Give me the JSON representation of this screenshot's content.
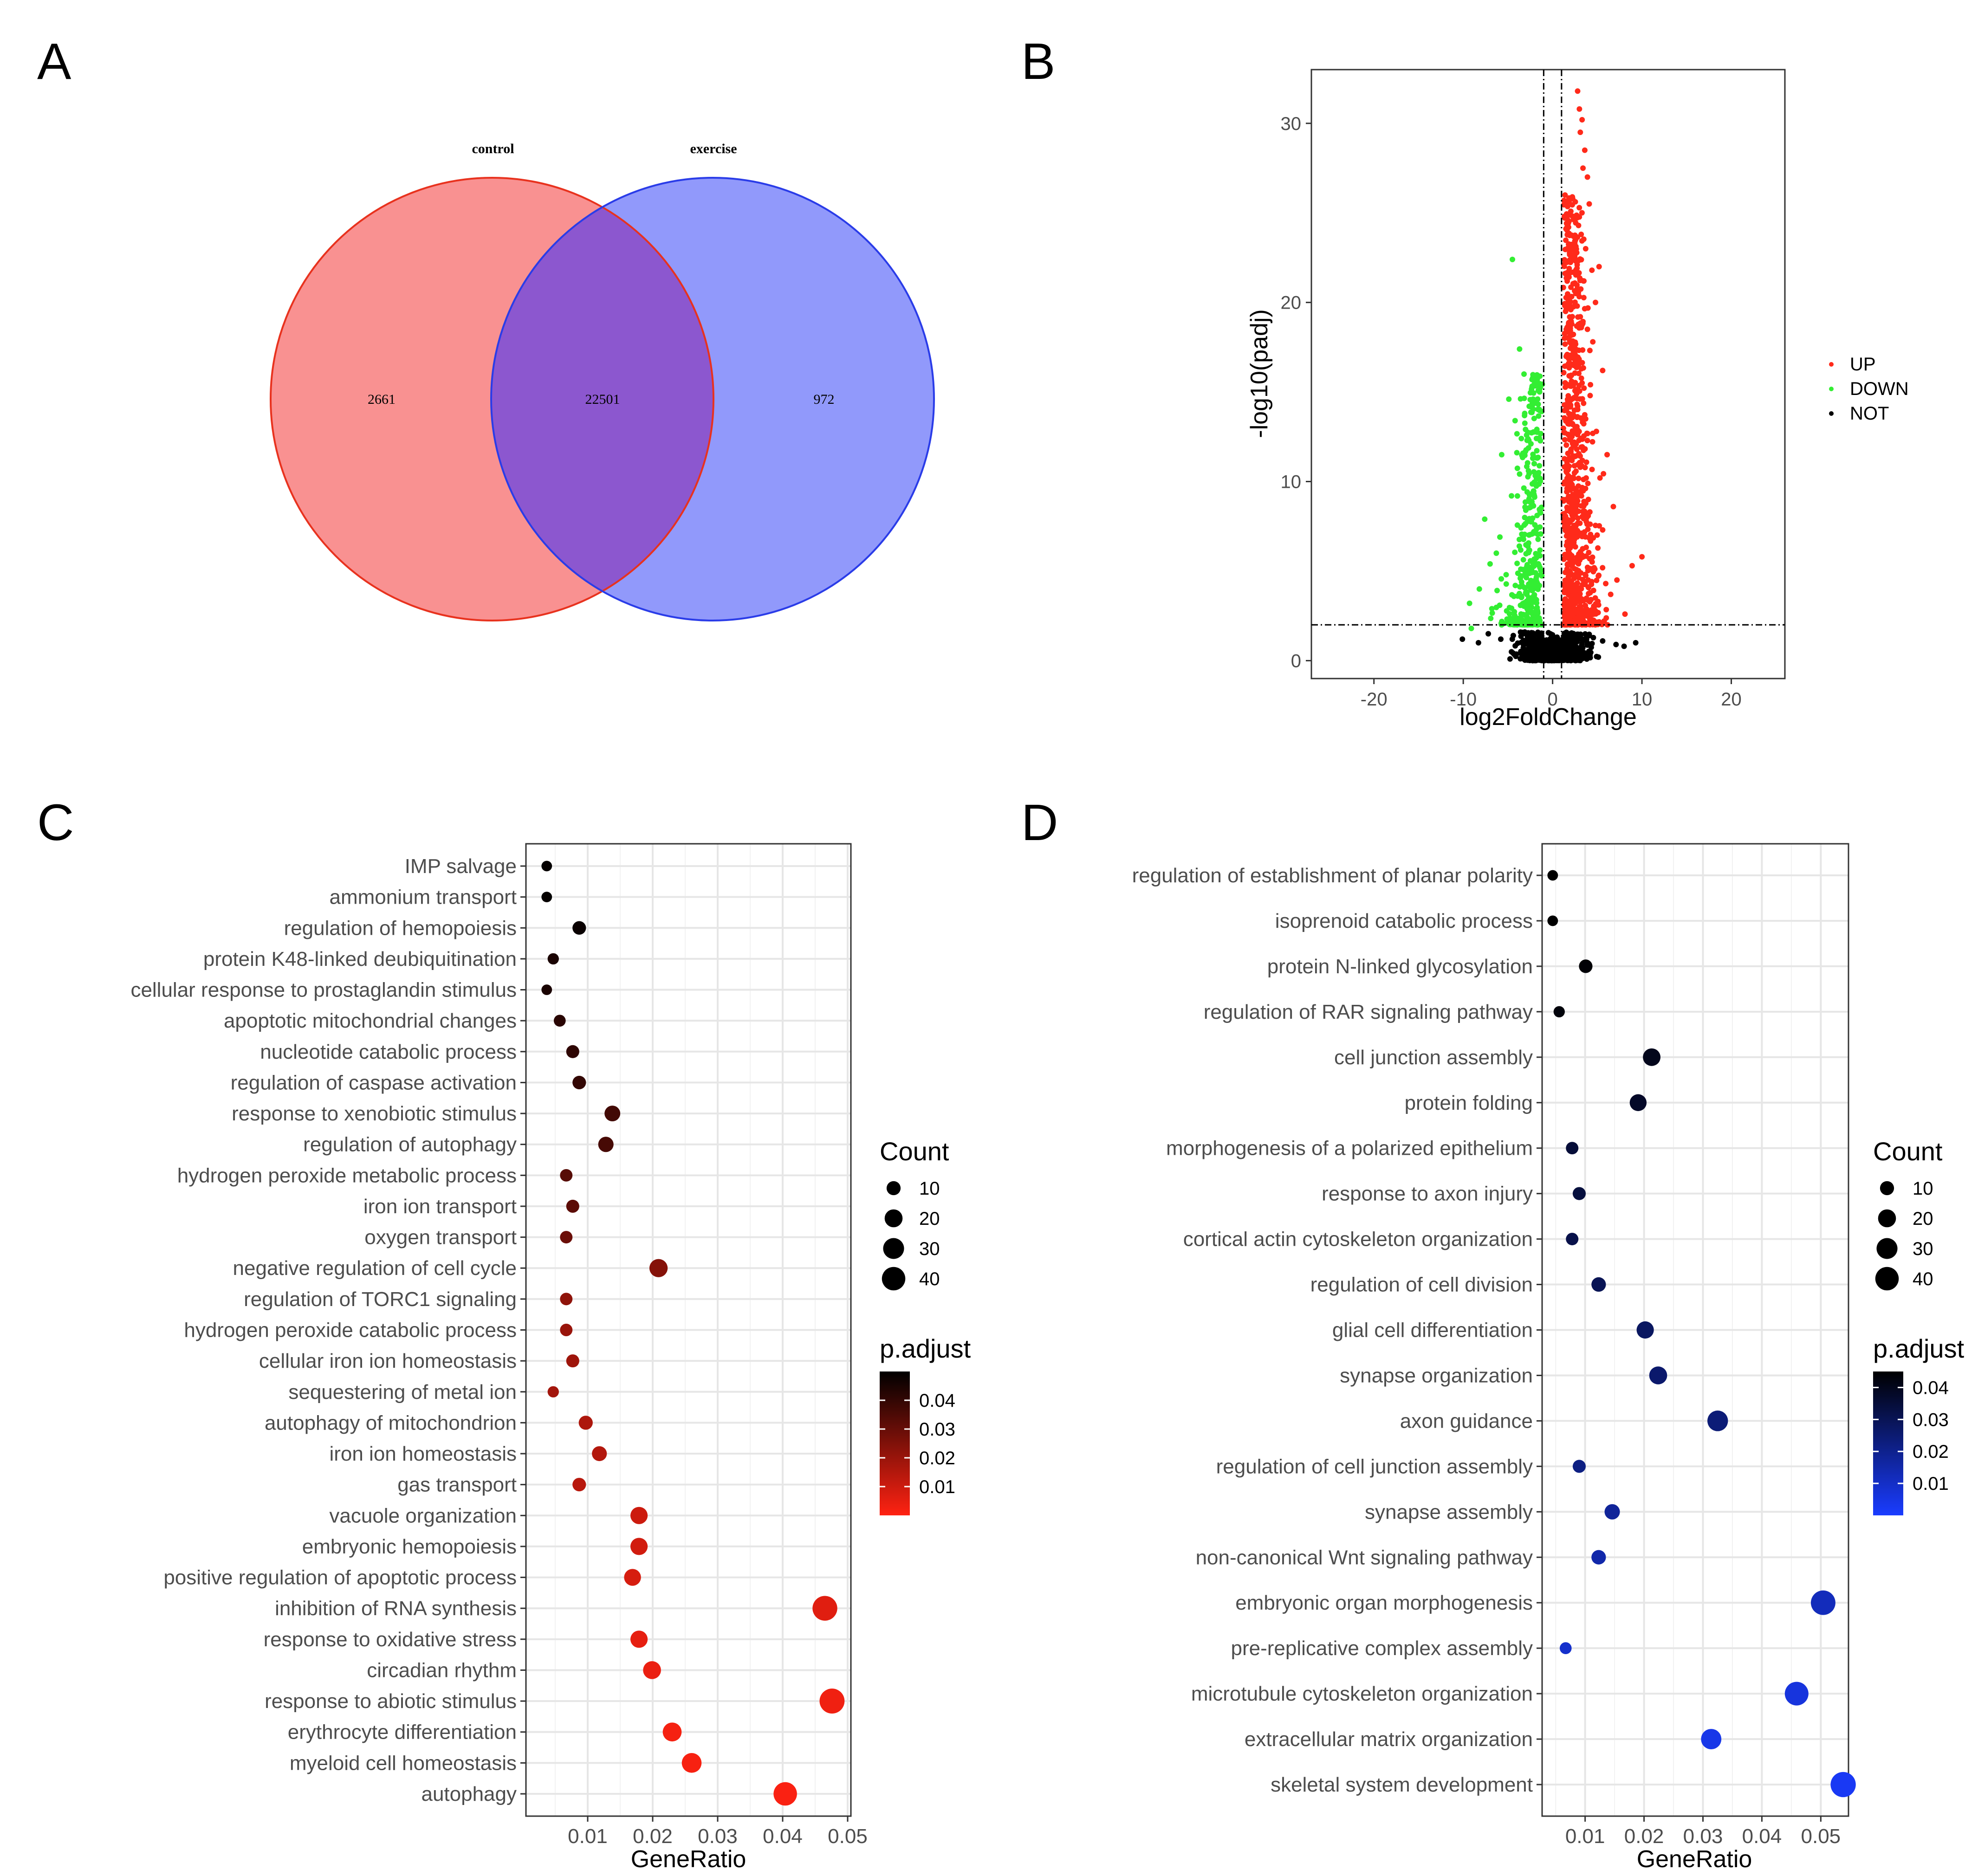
{
  "panels": {
    "a": "A",
    "b": "B",
    "c": "C",
    "d": "D"
  },
  "colors": {
    "up": "#ff2a1a",
    "down": "#33ee33",
    "not": "#000000",
    "control_fill": "#f99191",
    "control_edge": "#e8321e",
    "exercise_fill": "#9199fb",
    "exercise_edge": "#2a3ce8",
    "overlap_fill": "#8c57cf",
    "c_high": "#ff2212",
    "c_low": "#000000",
    "d_high": "#1a3cff",
    "d_low": "#000000"
  },
  "chart_data": [
    {
      "type": "venn",
      "sets": [
        {
          "name": "control",
          "only": 2661
        },
        {
          "name": "exercise",
          "only": 972
        }
      ],
      "overlap": 22501,
      "labels": {
        "control": "control",
        "exercise": "exercise",
        "control_only": "2661",
        "overlap": "22501",
        "exercise_only": "972"
      }
    },
    {
      "type": "scatter",
      "title": "",
      "xlabel": "log2FoldChange",
      "ylabel": "-log10(padj)",
      "xlim": [
        -27,
        26
      ],
      "ylim": [
        -1,
        33
      ],
      "xticks": [
        -20,
        -10,
        0,
        10,
        20
      ],
      "xtick_labels": [
        "-20",
        "-10",
        "0",
        "10",
        "20"
      ],
      "yticks": [
        0,
        10,
        20,
        30
      ],
      "ytick_labels": [
        "0",
        "10",
        "20",
        "30"
      ],
      "threshold_x": [
        -1,
        1
      ],
      "threshold_y": 2,
      "legend": [
        {
          "key": "UP",
          "label": "UP"
        },
        {
          "key": "DOWN",
          "label": "DOWN"
        },
        {
          "key": "NOT",
          "label": "NOT"
        }
      ],
      "outlier_points": {
        "UP": [
          [
            2.8,
            31.8
          ],
          [
            3.0,
            30.8
          ],
          [
            3.3,
            30.2
          ],
          [
            3.1,
            29.5
          ],
          [
            3.6,
            28.5
          ],
          [
            3.4,
            27.5
          ],
          [
            3.9,
            27.0
          ],
          [
            4.1,
            25.5
          ],
          [
            2.9,
            24.3
          ],
          [
            3.2,
            23.8
          ],
          [
            3.7,
            23.0
          ],
          [
            5.2,
            22.0
          ],
          [
            4.4,
            21.8
          ],
          [
            3.5,
            21.2
          ],
          [
            2.6,
            20.5
          ],
          [
            4.8,
            20.0
          ],
          [
            3.1,
            19.2
          ],
          [
            3.9,
            18.5
          ],
          [
            4.5,
            17.8
          ],
          [
            2.5,
            17.0
          ],
          [
            5.6,
            16.2
          ],
          [
            3.3,
            15.5
          ],
          [
            4.2,
            14.8
          ],
          [
            2.8,
            14.2
          ],
          [
            3.7,
            13.5
          ],
          [
            4.9,
            12.8
          ],
          [
            2.4,
            12.2
          ],
          [
            6.1,
            11.5
          ],
          [
            3.1,
            10.8
          ],
          [
            5.3,
            10.2
          ],
          [
            2.2,
            9.6
          ],
          [
            4.0,
            9.0
          ],
          [
            6.8,
            8.6
          ],
          [
            3.5,
            8.1
          ],
          [
            5.6,
            7.3
          ],
          [
            10.0,
            5.8
          ],
          [
            8.9,
            5.3
          ],
          [
            7.2,
            4.5
          ],
          [
            6.5,
            3.7
          ],
          [
            8.1,
            2.6
          ]
        ],
        "DOWN": [
          [
            -4.5,
            22.4
          ],
          [
            -3.7,
            17.4
          ],
          [
            -3.2,
            16.0
          ],
          [
            -4.9,
            14.6
          ],
          [
            -4.2,
            13.4
          ],
          [
            -3.5,
            12.4
          ],
          [
            -5.7,
            11.5
          ],
          [
            -2.7,
            10.6
          ],
          [
            -7.6,
            7.9
          ],
          [
            -4.6,
            9.2
          ],
          [
            -3.0,
            8.4
          ],
          [
            -5.9,
            6.9
          ],
          [
            -6.3,
            6.0
          ],
          [
            -2.1,
            7.2
          ],
          [
            -7.0,
            5.4
          ],
          [
            -5.2,
            4.8
          ],
          [
            -8.2,
            4.0
          ],
          [
            -9.3,
            3.2
          ],
          [
            -6.8,
            2.9
          ],
          [
            -9.1,
            1.8
          ]
        ],
        "NOT": [
          [
            -7.2,
            1.5
          ],
          [
            -5.8,
            1.2
          ],
          [
            -4.4,
            1.4
          ],
          [
            -3.0,
            1.1
          ],
          [
            -2.2,
            0.7
          ],
          [
            -1.6,
            0.5
          ],
          [
            -0.7,
            0.3
          ],
          [
            -0.2,
            0.2
          ],
          [
            0.4,
            0.3
          ],
          [
            1.0,
            0.6
          ],
          [
            1.9,
            0.9
          ],
          [
            2.9,
            1.2
          ],
          [
            4.1,
            1.4
          ],
          [
            5.6,
            1.1
          ],
          [
            7.1,
            0.9
          ],
          [
            8.0,
            0.8
          ],
          [
            9.3,
            1.0
          ],
          [
            -8.3,
            1.0
          ],
          [
            -10.1,
            1.2
          ]
        ]
      }
    },
    {
      "type": "dotplot",
      "xlabel": "GeneRatio",
      "xlim": [
        0.0005,
        0.0505
      ],
      "xticks": [
        0.01,
        0.02,
        0.03,
        0.04,
        0.05
      ],
      "xtick_labels": [
        "0.01",
        "0.02",
        "0.03",
        "0.04",
        "0.05"
      ],
      "size_legend_title": "Count",
      "size_legend": [
        {
          "count": 10,
          "label": "10"
        },
        {
          "count": 20,
          "label": "20"
        },
        {
          "count": 30,
          "label": "30"
        },
        {
          "count": 40,
          "label": "40"
        }
      ],
      "color_legend_title": "p.adjust",
      "padj_range": [
        0.0,
        0.05
      ],
      "color_ticks": [
        0.04,
        0.03,
        0.02,
        0.01
      ],
      "color_tick_labels": [
        "0.04",
        "0.03",
        "0.02",
        "0.01"
      ],
      "terms": [
        {
          "term": "IMP salvage",
          "ratio": 0.0037,
          "count": 4,
          "padj": 0.049
        },
        {
          "term": "ammonium transport",
          "ratio": 0.0037,
          "count": 4,
          "padj": 0.049
        },
        {
          "term": "regulation of hemopoiesis",
          "ratio": 0.0087,
          "count": 9,
          "padj": 0.048
        },
        {
          "term": "protein K48-linked deubiquitination",
          "ratio": 0.0047,
          "count": 5,
          "padj": 0.045
        },
        {
          "term": "cellular response to prostaglandin stimulus",
          "ratio": 0.0037,
          "count": 4,
          "padj": 0.045
        },
        {
          "term": "apoptotic mitochondrial changes",
          "ratio": 0.0057,
          "count": 6,
          "padj": 0.042
        },
        {
          "term": "nucleotide catabolic process",
          "ratio": 0.0077,
          "count": 8,
          "padj": 0.041
        },
        {
          "term": "regulation of caspase activation",
          "ratio": 0.0087,
          "count": 9,
          "padj": 0.04
        },
        {
          "term": "response to xenobiotic stimulus",
          "ratio": 0.0138,
          "count": 14,
          "padj": 0.037
        },
        {
          "term": "regulation of autophagy",
          "ratio": 0.0128,
          "count": 13,
          "padj": 0.036
        },
        {
          "term": "hydrogen peroxide metabolic process",
          "ratio": 0.0067,
          "count": 7,
          "padj": 0.033
        },
        {
          "term": "iron ion transport",
          "ratio": 0.0077,
          "count": 8,
          "padj": 0.032
        },
        {
          "term": "oxygen transport",
          "ratio": 0.0067,
          "count": 7,
          "padj": 0.029
        },
        {
          "term": "negative regulation of cell cycle",
          "ratio": 0.0209,
          "count": 21,
          "padj": 0.024
        },
        {
          "term": "regulation of TORC1 signaling",
          "ratio": 0.0067,
          "count": 7,
          "padj": 0.022
        },
        {
          "term": "hydrogen peroxide catabolic process",
          "ratio": 0.0067,
          "count": 7,
          "padj": 0.02
        },
        {
          "term": "cellular iron ion homeostasis",
          "ratio": 0.0077,
          "count": 8,
          "padj": 0.019
        },
        {
          "term": "sequestering of metal ion",
          "ratio": 0.0047,
          "count": 5,
          "padj": 0.018
        },
        {
          "term": "autophagy of mitochondrion",
          "ratio": 0.0097,
          "count": 10,
          "padj": 0.016
        },
        {
          "term": "iron ion homeostasis",
          "ratio": 0.0118,
          "count": 12,
          "padj": 0.015
        },
        {
          "term": "gas transport",
          "ratio": 0.0087,
          "count": 9,
          "padj": 0.014
        },
        {
          "term": "vacuole organization",
          "ratio": 0.0179,
          "count": 18,
          "padj": 0.01
        },
        {
          "term": "embryonic hemopoiesis",
          "ratio": 0.0179,
          "count": 18,
          "padj": 0.009
        },
        {
          "term": "positive regulation of apoptotic process",
          "ratio": 0.0169,
          "count": 17,
          "padj": 0.008
        },
        {
          "term": "inhibition of RNA synthesis",
          "ratio": 0.0465,
          "count": 46,
          "padj": 0.006
        },
        {
          "term": "response to oxidative stress",
          "ratio": 0.0179,
          "count": 18,
          "padj": 0.005
        },
        {
          "term": "circadian rhythm",
          "ratio": 0.0199,
          "count": 20,
          "padj": 0.004
        },
        {
          "term": "response to abiotic stimulus",
          "ratio": 0.0476,
          "count": 47,
          "padj": 0.003
        },
        {
          "term": "erythrocyte differentiation",
          "ratio": 0.023,
          "count": 23,
          "padj": 0.002
        },
        {
          "term": "myeloid cell homeostasis",
          "ratio": 0.026,
          "count": 26,
          "padj": 0.0015
        },
        {
          "term": "autophagy",
          "ratio": 0.0404,
          "count": 40,
          "padj": 0.001
        }
      ]
    },
    {
      "type": "dotplot",
      "xlabel": "GeneRatio",
      "xlim": [
        0.0027,
        0.0547
      ],
      "xticks": [
        0.01,
        0.02,
        0.03,
        0.04,
        0.05
      ],
      "xtick_labels": [
        "0.01",
        "0.02",
        "0.03",
        "0.04",
        "0.05"
      ],
      "size_legend_title": "Count",
      "size_legend": [
        {
          "count": 10,
          "label": "10"
        },
        {
          "count": 20,
          "label": "20"
        },
        {
          "count": 30,
          "label": "30"
        },
        {
          "count": 40,
          "label": "40"
        }
      ],
      "color_legend_title": "p.adjust",
      "padj_range": [
        0.0,
        0.045
      ],
      "color_ticks": [
        0.04,
        0.03,
        0.02,
        0.01
      ],
      "color_tick_labels": [
        "0.04",
        "0.03",
        "0.02",
        "0.01"
      ],
      "terms": [
        {
          "term": "regulation of establishment of planar polarity",
          "ratio": 0.0045,
          "count": 4,
          "padj": 0.045
        },
        {
          "term": "isoprenoid catabolic process",
          "ratio": 0.0045,
          "count": 4,
          "padj": 0.045
        },
        {
          "term": "protein N-linked glycosylation",
          "ratio": 0.0101,
          "count": 9,
          "padj": 0.044
        },
        {
          "term": "regulation of RAR signaling pathway",
          "ratio": 0.0056,
          "count": 5,
          "padj": 0.043
        },
        {
          "term": "cell junction assembly",
          "ratio": 0.0213,
          "count": 19,
          "padj": 0.04
        },
        {
          "term": "protein folding",
          "ratio": 0.019,
          "count": 17,
          "padj": 0.038
        },
        {
          "term": "morphogenesis of a polarized epithelium",
          "ratio": 0.0078,
          "count": 7,
          "padj": 0.035
        },
        {
          "term": "response to axon injury",
          "ratio": 0.009,
          "count": 8,
          "padj": 0.034
        },
        {
          "term": "cortical actin cytoskeleton organization",
          "ratio": 0.0078,
          "count": 7,
          "padj": 0.032
        },
        {
          "term": "regulation of cell division",
          "ratio": 0.0123,
          "count": 11,
          "padj": 0.03
        },
        {
          "term": "glial cell differentiation",
          "ratio": 0.0202,
          "count": 18,
          "padj": 0.028
        },
        {
          "term": "synapse organization",
          "ratio": 0.0224,
          "count": 20,
          "padj": 0.026
        },
        {
          "term": "axon guidance",
          "ratio": 0.0325,
          "count": 29,
          "padj": 0.024
        },
        {
          "term": "regulation of cell junction assembly",
          "ratio": 0.009,
          "count": 8,
          "padj": 0.022
        },
        {
          "term": "synapse assembly",
          "ratio": 0.0146,
          "count": 13,
          "padj": 0.018
        },
        {
          "term": "non-canonical Wnt signaling pathway",
          "ratio": 0.0123,
          "count": 11,
          "padj": 0.015
        },
        {
          "term": "embryonic organ morphogenesis",
          "ratio": 0.0504,
          "count": 45,
          "padj": 0.012
        },
        {
          "term": "pre-replicative complex assembly",
          "ratio": 0.0067,
          "count": 6,
          "padj": 0.009
        },
        {
          "term": "microtubule cytoskeleton organization",
          "ratio": 0.0459,
          "count": 41,
          "padj": 0.006
        },
        {
          "term": "extracellular matrix organization",
          "ratio": 0.0314,
          "count": 28,
          "padj": 0.004
        },
        {
          "term": "skeletal system development",
          "ratio": 0.0538,
          "count": 48,
          "padj": 0.002
        }
      ]
    }
  ]
}
